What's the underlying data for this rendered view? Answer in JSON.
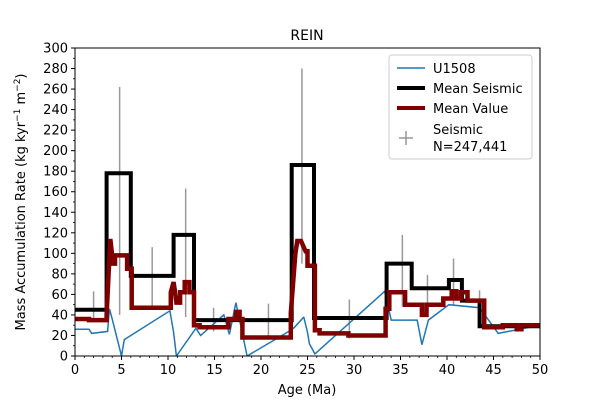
{
  "chart_data": {
    "type": "line",
    "title": "REIN",
    "xlabel": "Age (Ma)",
    "ylabel_parts": [
      "Mass Accumulation Rate (kg kyr",
      "−1",
      " m",
      "−2",
      ")"
    ],
    "xlim": [
      0,
      50
    ],
    "ylim": [
      0,
      300
    ],
    "xticks": [
      0,
      5,
      10,
      15,
      20,
      25,
      30,
      35,
      40,
      45,
      50
    ],
    "yticks": [
      0,
      20,
      40,
      60,
      80,
      100,
      120,
      140,
      160,
      180,
      200,
      220,
      240,
      260,
      280,
      300
    ],
    "grid": false,
    "legend_position": "top-right",
    "colors": {
      "u1508": "#1f77b4",
      "mean_seismic": "#000000",
      "mean_value": "#800000",
      "seismic": "#999999"
    },
    "legend": {
      "u1508": "U1508",
      "mean_seismic": "Mean Seismic",
      "mean_value": "Mean Value",
      "seismic_line1": "Seismic",
      "seismic_line2": "N=247,441"
    },
    "series": {
      "u1508": {
        "name": "U1508",
        "x": [
          0,
          1.5,
          1.5,
          1.8,
          1.8,
          3.5,
          3.5,
          3.7,
          3.7,
          4.0,
          4.0,
          5.0,
          5.0,
          5.3,
          5.3,
          10.2,
          10.2,
          10.6,
          10.6,
          10.9,
          10.9,
          13.0,
          13.0,
          13.5,
          13.5,
          16.0,
          16.0,
          16.6,
          16.6,
          17.3,
          17.3,
          18.5,
          18.5,
          23.2,
          23.2,
          23.6,
          23.6,
          24.6,
          24.6,
          25.0,
          25.0,
          25.2,
          25.2,
          25.8,
          25.8,
          33.3,
          33.3,
          34.0,
          34.0,
          36.8,
          36.8,
          37.3,
          37.3,
          38.0,
          38.0,
          40.2,
          40.2,
          43.5,
          43.5,
          45.5,
          45.5,
          50
        ],
        "y": [
          26,
          26,
          26,
          22,
          22,
          24,
          24,
          46,
          46,
          36,
          36,
          0,
          0,
          16,
          16,
          44,
          44,
          23,
          23,
          0,
          0,
          27,
          27,
          20,
          20,
          40,
          40,
          21,
          21,
          52,
          52,
          0,
          0,
          25,
          25,
          28,
          28,
          38,
          38,
          23,
          23,
          12,
          12,
          2,
          2,
          63,
          63,
          35,
          35,
          35,
          35,
          11,
          11,
          35,
          35,
          50,
          50,
          47,
          47,
          22,
          22,
          30
        ]
      },
      "mean_seismic": {
        "name": "Mean Seismic",
        "x": [
          0,
          3.4,
          3.4,
          6.0,
          6.0,
          10.6,
          10.6,
          12.8,
          12.8,
          17.8,
          17.8,
          23.3,
          23.3,
          25.7,
          25.7,
          33.5,
          33.5,
          36.2,
          36.2,
          40.2,
          40.2,
          41.6,
          41.6,
          43.5,
          43.5,
          50
        ],
        "y": [
          45,
          45,
          178,
          178,
          78,
          78,
          118,
          118,
          35,
          35,
          35,
          35,
          186,
          186,
          37,
          37,
          90,
          90,
          66,
          66,
          74,
          74,
          54,
          54,
          29,
          29
        ]
      },
      "mean_value": {
        "name": "Mean Value",
        "x": [
          0,
          1.5,
          1.5,
          3.4,
          3.4,
          3.8,
          4.1,
          4.3,
          4.3,
          5.6,
          5.6,
          6.1,
          6.1,
          10.3,
          10.3,
          10.6,
          10.9,
          11.3,
          11.3,
          11.8,
          11.8,
          12.3,
          12.3,
          12.8,
          12.8,
          13.4,
          13.4,
          16.5,
          16.5,
          17.3,
          17.3,
          17.7,
          17.7,
          18.0,
          18.0,
          23.2,
          23.2,
          23.7,
          23.9,
          24.3,
          24.8,
          25.0,
          25.0,
          25.8,
          25.8,
          26.3,
          26.3,
          29.4,
          29.4,
          33.4,
          33.4,
          33.8,
          33.8,
          35.5,
          35.5,
          37.3,
          37.3,
          37.8,
          37.8,
          39.6,
          39.6,
          40.5,
          40.5,
          41.0,
          41.0,
          41.5,
          41.5,
          42.2,
          42.2,
          44.0,
          44.0,
          46.0,
          46.0,
          47.5,
          47.5,
          48.0,
          48.0,
          50
        ],
        "y": [
          36,
          36,
          35,
          35,
          40,
          114,
          90,
          90,
          98,
          98,
          85,
          85,
          47,
          47,
          62,
          72,
          52,
          52,
          62,
          62,
          72,
          72,
          62,
          62,
          30,
          30,
          28,
          28,
          36,
          36,
          43,
          43,
          36,
          36,
          18,
          18,
          42,
          100,
          112,
          112,
          102,
          102,
          88,
          88,
          25,
          25,
          22,
          22,
          20,
          20,
          46,
          46,
          62,
          62,
          50,
          50,
          40,
          40,
          50,
          50,
          56,
          56,
          63,
          63,
          56,
          56,
          62,
          62,
          54,
          54,
          28,
          28,
          30,
          30,
          26,
          26,
          30,
          30
        ]
      },
      "seismic_errorbars": {
        "name": "Seismic",
        "x": [
          2.0,
          4.8,
          8.3,
          10.9,
          11.9,
          14.9,
          20.8,
          24.4,
          29.5,
          35.2,
          37.9,
          40.7,
          43.5
        ],
        "ylow": [
          34,
          40,
          48,
          60,
          38,
          24,
          18,
          90,
          17,
          48,
          42,
          49,
          40
        ],
        "yhigh": [
          63,
          262,
          106,
          66,
          163,
          47,
          51,
          280,
          55,
          118,
          79,
          95,
          64
        ]
      }
    }
  }
}
